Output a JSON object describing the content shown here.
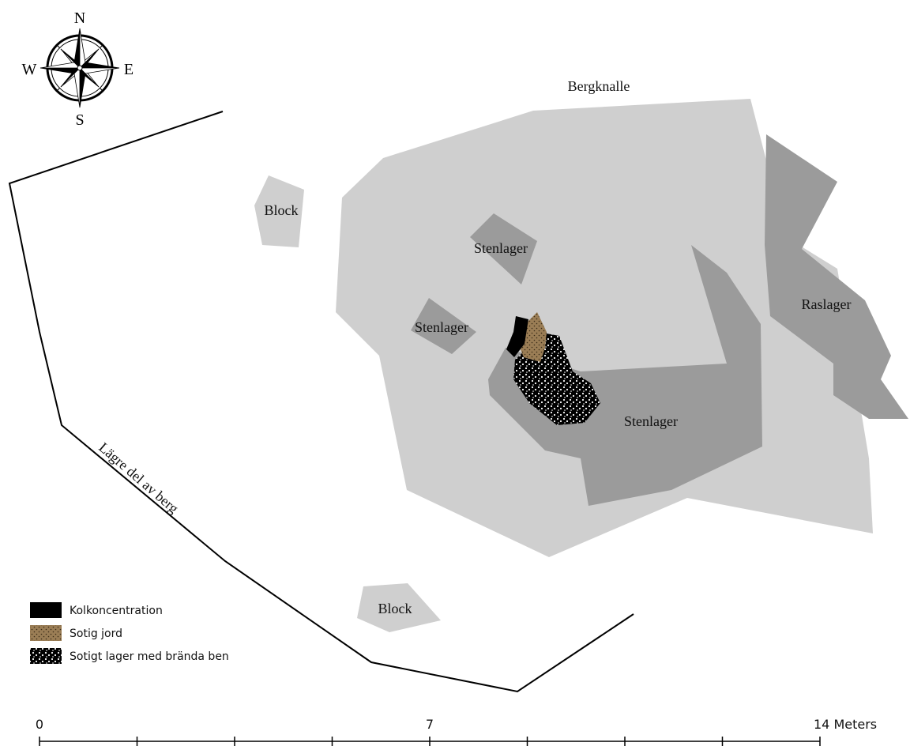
{
  "compass": {
    "n": "N",
    "s": "S",
    "e": "E",
    "w": "W"
  },
  "labels": {
    "bergknalle": "Bergknalle",
    "block_top": "Block",
    "block_bottom": "Block",
    "stenlager_top": "Stenlager",
    "stenlager_left": "Stenlager",
    "stenlager_main": "Stenlager",
    "raslager": "Raslager",
    "lagre_del": "Lägre del av berg"
  },
  "legend": {
    "items": [
      {
        "label": "Kolkoncentration",
        "symbol": "black-fill-icon"
      },
      {
        "label": "Sotig jord",
        "symbol": "brown-dotted-fill-icon"
      },
      {
        "label": "Sotigt lager med brända ben",
        "symbol": "black-white-dotted-fill-icon"
      }
    ]
  },
  "scale_bar": {
    "labels": [
      "0",
      "7",
      "14 Meters"
    ],
    "max_meters": 14,
    "divisions": 8
  },
  "colors": {
    "bedrock": "#cfcfcf",
    "stone_layer": "#9b9b9b",
    "charcoal": "#000000",
    "sooty_soil": "#9a7d55",
    "burnt_bone_layer": "#000000",
    "line": "#000000"
  }
}
